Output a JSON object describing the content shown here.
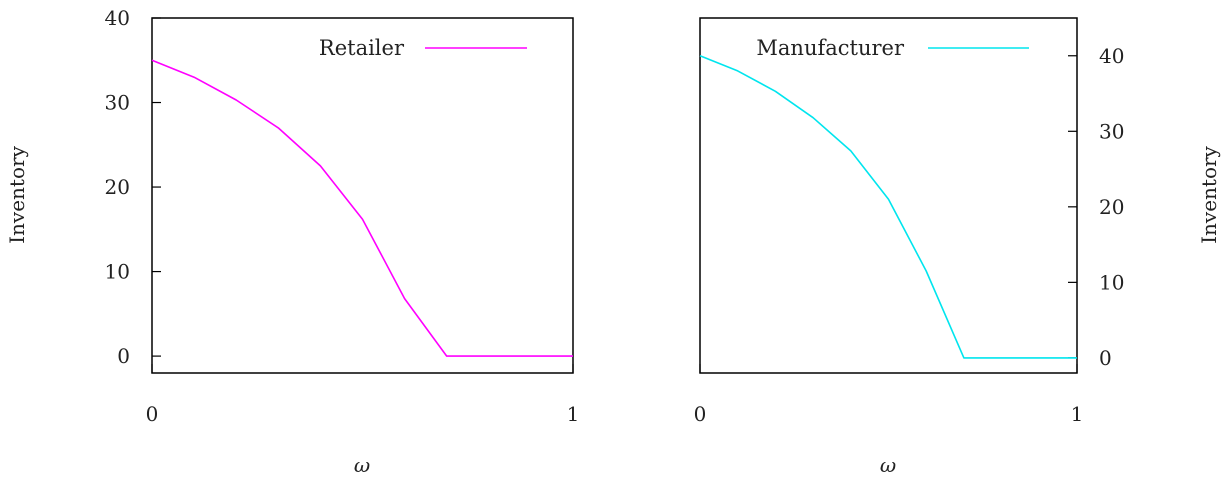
{
  "chart_data": [
    {
      "type": "line",
      "xlabel": "ω",
      "ylabel": "Inventory",
      "xlim": [
        0,
        1
      ],
      "ylim": [
        -2,
        40
      ],
      "y_axis_side": "left",
      "x_ticks": [
        "0",
        "1"
      ],
      "y_ticks": [
        "0",
        "10",
        "20",
        "30",
        "40"
      ],
      "legend_position": "top-right",
      "series": [
        {
          "name": "Retailer",
          "color": "#ff00ff",
          "x": [
            0,
            0.1,
            0.2,
            0.3,
            0.4,
            0.5,
            0.6,
            0.7,
            0.8,
            0.9,
            1.0
          ],
          "y": [
            35,
            33,
            30.3,
            27,
            22.5,
            16.2,
            6.8,
            0,
            0,
            0,
            0
          ]
        }
      ]
    },
    {
      "type": "line",
      "xlabel": "ω",
      "ylabel": "Inventory",
      "xlim": [
        0,
        1
      ],
      "ylim": [
        -2,
        45
      ],
      "y_axis_side": "right",
      "x_ticks": [
        "0",
        "1"
      ],
      "y_ticks": [
        "0",
        "10",
        "20",
        "30",
        "40"
      ],
      "legend_position": "top-right",
      "series": [
        {
          "name": "Manufacturer",
          "color": "#00e5ee",
          "x": [
            0,
            0.1,
            0.2,
            0.3,
            0.4,
            0.5,
            0.6,
            0.7,
            0.8,
            0.9,
            1.0
          ],
          "y": [
            40,
            38,
            35.3,
            31.8,
            27.4,
            21,
            11.5,
            0,
            0,
            0,
            0
          ]
        }
      ]
    }
  ]
}
